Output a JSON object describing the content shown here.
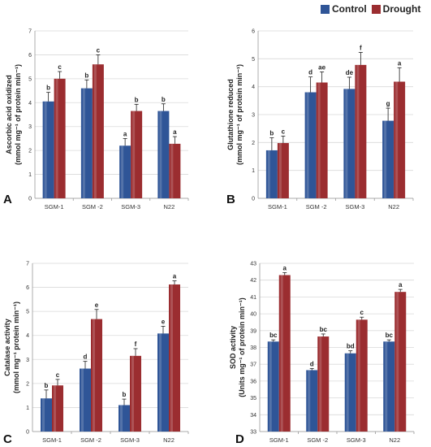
{
  "colors": {
    "control": "#2f5597",
    "drought": "#9b2d30",
    "grid": "#d9d9d9",
    "axis": "#999999",
    "text": "#333333"
  },
  "legend": {
    "items": [
      {
        "label": "Control"
      },
      {
        "label": "Drought"
      }
    ]
  },
  "chart_data": [
    {
      "type": "bar",
      "panel": "A",
      "ylabel": "Ascorbic acid oxidized (mmol mg⁻¹ of protein min⁻¹)",
      "categories": [
        "SGM-1",
        "SGM -2",
        "SGM-3",
        "N22"
      ],
      "ylim": [
        0,
        7
      ],
      "yticks": [
        0,
        1,
        2,
        3,
        4,
        5,
        6,
        7
      ],
      "series": [
        {
          "name": "Control",
          "values": [
            4.05,
            4.6,
            2.2,
            3.65
          ],
          "errors": [
            0.38,
            0.35,
            0.3,
            0.3
          ],
          "labels": [
            "b",
            "b",
            "a",
            "b"
          ]
        },
        {
          "name": "Drought",
          "values": [
            5.0,
            5.6,
            3.65,
            2.28
          ],
          "errors": [
            0.3,
            0.4,
            0.28,
            0.3
          ],
          "labels": [
            "c",
            "c",
            "b",
            "a"
          ]
        }
      ],
      "grid": true
    },
    {
      "type": "bar",
      "panel": "B",
      "ylabel": "Glutathione reduced (mmol mg⁻¹ of protein min⁻¹)",
      "categories": [
        "SGM-1",
        "SGM -2",
        "SGM-3",
        "N22"
      ],
      "ylim": [
        0,
        6
      ],
      "yticks": [
        0,
        1,
        2,
        3,
        4,
        5,
        6
      ],
      "series": [
        {
          "name": "Control",
          "values": [
            1.72,
            3.8,
            3.92,
            2.78
          ],
          "errors": [
            0.45,
            0.55,
            0.42,
            0.45
          ],
          "labels": [
            "b",
            "d",
            "de",
            "g"
          ]
        },
        {
          "name": "Drought",
          "values": [
            1.98,
            4.15,
            4.78,
            4.18
          ],
          "errors": [
            0.25,
            0.38,
            0.45,
            0.5
          ],
          "labels": [
            "c",
            "ae",
            "f",
            "a"
          ]
        }
      ],
      "grid": true
    },
    {
      "type": "bar",
      "panel": "C",
      "ylabel": "Catalase activity (mmol mg⁻¹ protein min⁻¹)",
      "categories": [
        "SGM-1",
        "SGM -2",
        "SGM-3",
        "N22"
      ],
      "ylim": [
        0,
        7
      ],
      "yticks": [
        0,
        1,
        2,
        3,
        4,
        5,
        6,
        7
      ],
      "series": [
        {
          "name": "Control",
          "values": [
            1.38,
            2.62,
            1.1,
            4.08
          ],
          "errors": [
            0.35,
            0.3,
            0.25,
            0.3
          ],
          "labels": [
            "b",
            "d",
            "b",
            "e"
          ]
        },
        {
          "name": "Drought",
          "values": [
            1.92,
            4.68,
            3.15,
            6.12
          ],
          "errors": [
            0.25,
            0.4,
            0.3,
            0.15
          ],
          "labels": [
            "c",
            "e",
            "f",
            "a"
          ]
        }
      ],
      "grid": true
    },
    {
      "type": "bar",
      "panel": "D",
      "ylabel": "SOD activity (Units mg⁻¹ of protein min⁻¹)",
      "categories": [
        "SGM-1",
        "SGM -2",
        "SGM-3",
        "N22"
      ],
      "ylim": [
        33,
        43
      ],
      "yticks": [
        33,
        34,
        35,
        36,
        37,
        38,
        39,
        40,
        41,
        42,
        43
      ],
      "series": [
        {
          "name": "Control",
          "values": [
            38.35,
            36.65,
            37.65,
            38.35
          ],
          "errors": [
            0.1,
            0.1,
            0.15,
            0.1
          ],
          "labels": [
            "bc",
            "d",
            "bd",
            "bc"
          ]
        },
        {
          "name": "Drought",
          "values": [
            42.3,
            38.65,
            39.65,
            41.3
          ],
          "errors": [
            0.15,
            0.15,
            0.15,
            0.15
          ],
          "labels": [
            "a",
            "bc",
            "c",
            "a"
          ]
        }
      ],
      "grid": true
    }
  ]
}
